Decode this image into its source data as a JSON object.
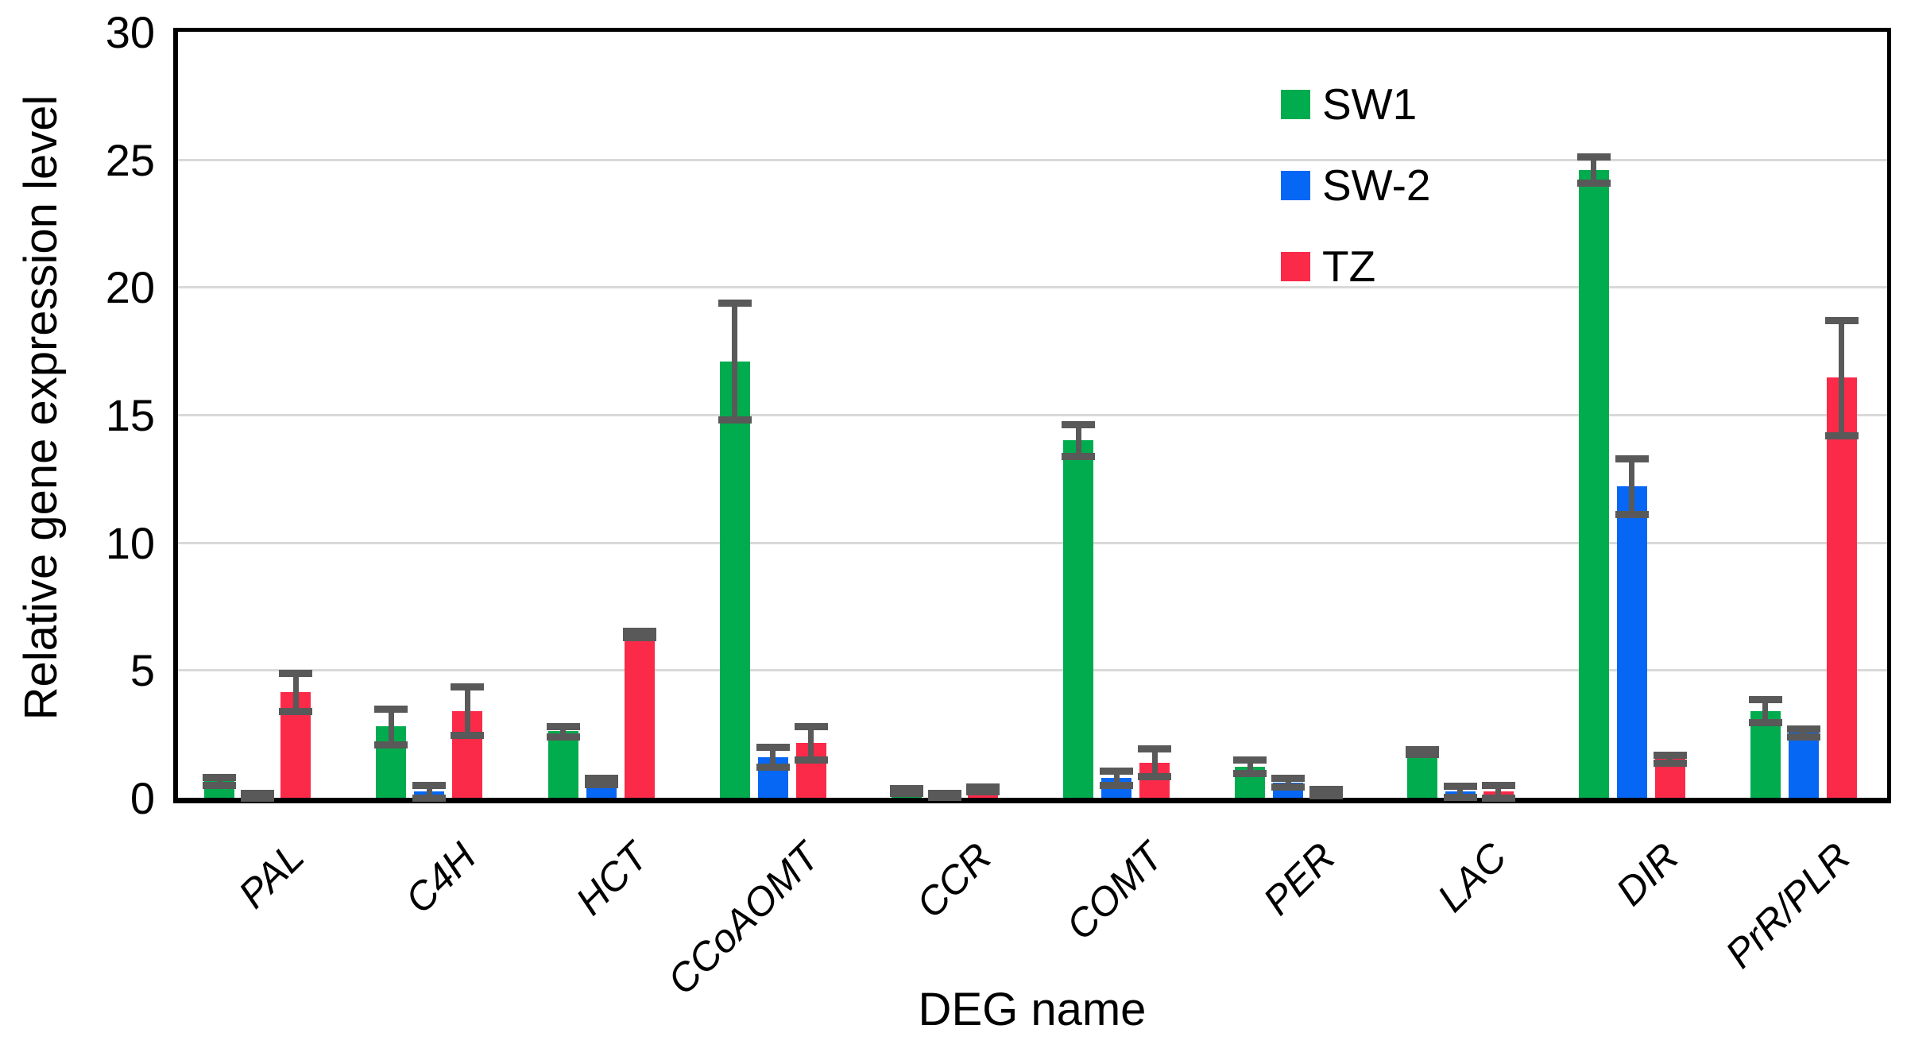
{
  "figure": {
    "y_axis_title": "Relative gene expression level",
    "x_axis_title": "DEG name"
  },
  "legend": {
    "position": "top-right-inside",
    "items": [
      {
        "label": "SW1",
        "color": "#00AC4E"
      },
      {
        "label": "SW-2",
        "color": "#0667F5"
      },
      {
        "label": "TZ",
        "color": "#FB2A49"
      }
    ]
  },
  "chart_data": {
    "type": "bar",
    "title": "",
    "xlabel": "DEG name",
    "ylabel": "Relative gene expression level",
    "ylim": [
      0,
      30
    ],
    "yticks": [
      0,
      5,
      10,
      15,
      20,
      25,
      30
    ],
    "grid": true,
    "grid_color": "#d9d9d9",
    "error_bar_color": "#595959",
    "categories": [
      "PAL",
      "C4H",
      "HCT",
      "CCoAOMT",
      "CCR",
      "COMT",
      "PER",
      "LAC",
      "DIR",
      "PrR/PLR"
    ],
    "series": [
      {
        "name": "SW1",
        "color": "#00AC4E",
        "values": [
          0.65,
          2.8,
          2.6,
          17.1,
          0.28,
          14.0,
          1.22,
          1.81,
          24.6,
          3.4
        ],
        "errors": [
          0.15,
          0.7,
          0.2,
          2.3,
          0.08,
          0.62,
          0.26,
          0.1,
          0.52,
          0.45
        ]
      },
      {
        "name": "SW-2",
        "color": "#0667F5",
        "values": [
          0.1,
          0.25,
          0.65,
          1.6,
          0.12,
          0.78,
          0.6,
          0.25,
          12.2,
          2.55
        ],
        "errors": [
          0.1,
          0.25,
          0.12,
          0.38,
          0.08,
          0.28,
          0.17,
          0.22,
          1.08,
          0.15
        ]
      },
      {
        "name": "TZ",
        "color": "#FB2A49",
        "values": [
          4.15,
          3.4,
          6.4,
          2.15,
          0.35,
          1.38,
          0.21,
          0.25,
          1.52,
          16.45
        ],
        "errors": [
          0.75,
          0.95,
          0.12,
          0.65,
          0.1,
          0.55,
          0.13,
          0.25,
          0.16,
          2.25
        ]
      }
    ]
  }
}
